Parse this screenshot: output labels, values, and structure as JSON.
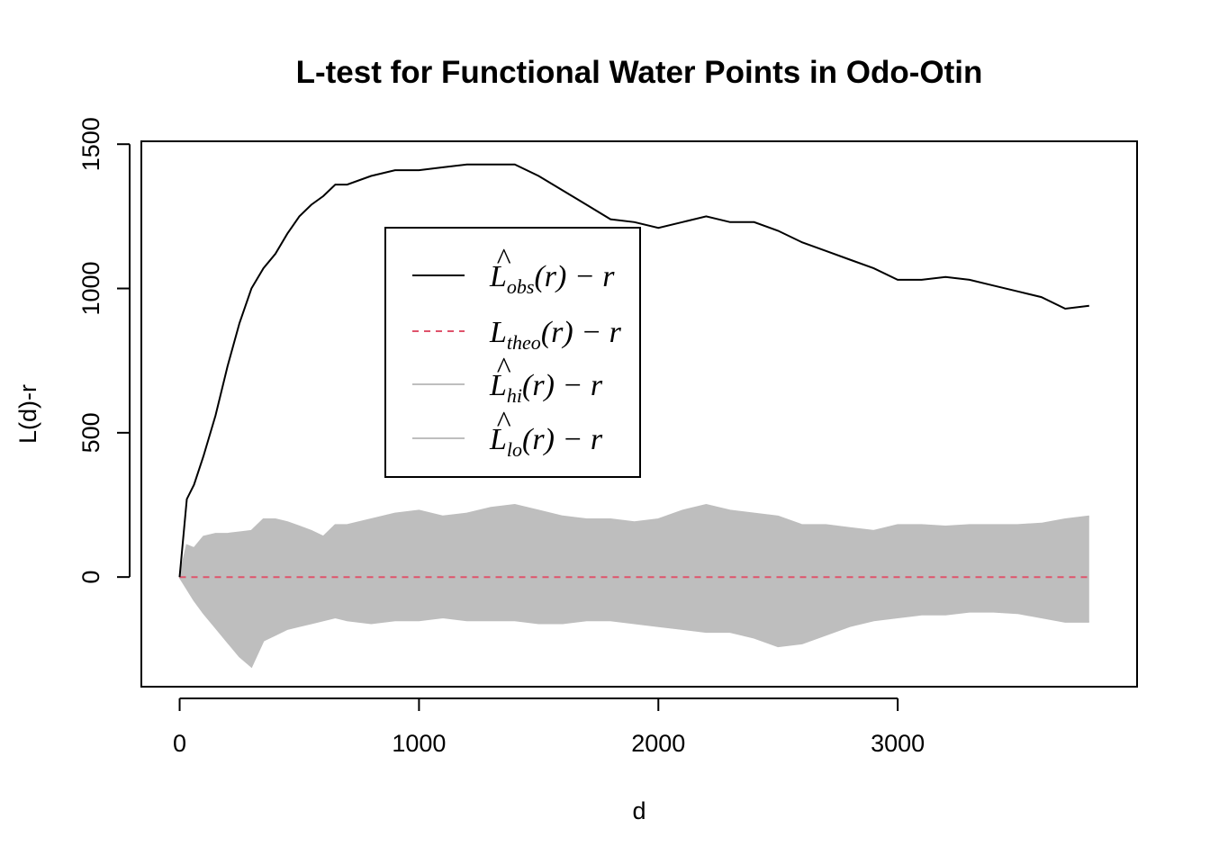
{
  "chart_data": {
    "type": "line",
    "title": "L-test for Functional Water Points in Odo-Otin",
    "xlabel": "d",
    "ylabel": "L(d)-r",
    "xlim": [
      -160,
      4000
    ],
    "ylim": [
      -380,
      1510
    ],
    "x_ticks": [
      0,
      1000,
      2000,
      3000
    ],
    "x_tick_labels": [
      "0",
      "1000",
      "2000",
      "3000"
    ],
    "y_ticks": [
      0,
      500,
      1000,
      1500
    ],
    "y_tick_labels": [
      "0",
      "500",
      "1000",
      "1500"
    ],
    "legend_position": "top-center",
    "colors": {
      "obs": "#000000",
      "theo": "#df536b",
      "envelope": "#bebebe",
      "frame": "#000000"
    },
    "x": [
      0,
      30,
      60,
      100,
      150,
      200,
      250,
      300,
      350,
      400,
      450,
      500,
      550,
      600,
      650,
      700,
      800,
      900,
      1000,
      1100,
      1200,
      1300,
      1400,
      1500,
      1600,
      1700,
      1800,
      1900,
      2000,
      2100,
      2200,
      2300,
      2400,
      2500,
      2600,
      2700,
      2800,
      2900,
      3000,
      3100,
      3200,
      3300,
      3400,
      3500,
      3600,
      3700,
      3800
    ],
    "series": [
      {
        "key": "obs",
        "legend_main": "L",
        "legend_sub": "obs",
        "legend_hat": true,
        "legend_tail": "(r) − r",
        "values": [
          0,
          270,
          320,
          420,
          560,
          730,
          880,
          1000,
          1070,
          1120,
          1190,
          1250,
          1290,
          1320,
          1360,
          1360,
          1390,
          1410,
          1410,
          1420,
          1430,
          1430,
          1430,
          1390,
          1340,
          1290,
          1240,
          1230,
          1210,
          1230,
          1250,
          1230,
          1230,
          1200,
          1160,
          1130,
          1100,
          1070,
          1030,
          1030,
          1040,
          1030,
          1010,
          990,
          970,
          930,
          940
        ]
      },
      {
        "key": "theo",
        "legend_main": "L",
        "legend_sub": "theo",
        "legend_hat": false,
        "legend_tail": "(r) − r",
        "values": [
          0,
          0,
          0,
          0,
          0,
          0,
          0,
          0,
          0,
          0,
          0,
          0,
          0,
          0,
          0,
          0,
          0,
          0,
          0,
          0,
          0,
          0,
          0,
          0,
          0,
          0,
          0,
          0,
          0,
          0,
          0,
          0,
          0,
          0,
          0,
          0,
          0,
          0,
          0,
          0,
          0,
          0,
          0,
          0,
          0,
          0,
          0
        ]
      },
      {
        "key": "hi",
        "legend_main": "L",
        "legend_sub": "hi",
        "legend_hat": true,
        "legend_tail": "(r) − r",
        "values": [
          0,
          110,
          100,
          140,
          150,
          150,
          155,
          160,
          200,
          200,
          190,
          175,
          160,
          140,
          180,
          180,
          200,
          220,
          230,
          210,
          220,
          240,
          250,
          230,
          210,
          200,
          200,
          190,
          200,
          230,
          250,
          230,
          220,
          210,
          180,
          180,
          170,
          160,
          180,
          180,
          175,
          180,
          180,
          180,
          185,
          200,
          210
        ]
      },
      {
        "key": "lo",
        "legend_main": "L",
        "legend_sub": "lo",
        "legend_hat": true,
        "legend_tail": "(r) − r",
        "values": [
          0,
          -40,
          -80,
          -125,
          -175,
          -225,
          -275,
          -310,
          -220,
          -200,
          -180,
          -170,
          -160,
          -150,
          -140,
          -150,
          -160,
          -150,
          -150,
          -140,
          -150,
          -150,
          -150,
          -160,
          -160,
          -150,
          -150,
          -160,
          -170,
          -180,
          -190,
          -190,
          -210,
          -240,
          -230,
          -200,
          -170,
          -150,
          -140,
          -130,
          -130,
          -120,
          -120,
          -125,
          -140,
          -155,
          -155
        ]
      }
    ]
  }
}
